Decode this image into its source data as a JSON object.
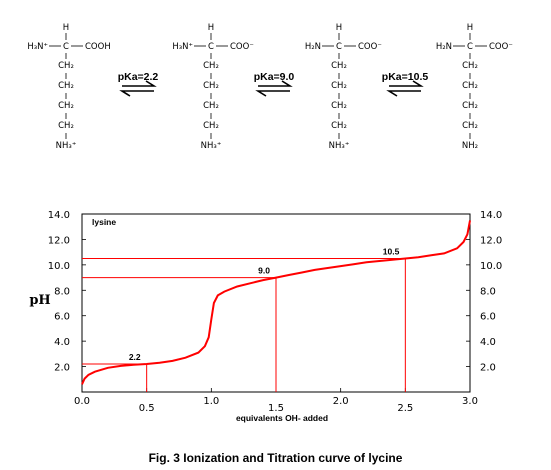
{
  "scheme": {
    "structures": [
      {
        "amine": "H₃N⁺",
        "alpha_h": "H",
        "alpha_c": "C",
        "carboxyl": "COOH",
        "chain": [
          "CH₂",
          "CH₂",
          "CH₂",
          "CH₂"
        ],
        "side_amine": "NH₃⁺"
      },
      {
        "amine": "H₃N⁺",
        "alpha_h": "H",
        "alpha_c": "C",
        "carboxyl": "COO⁻",
        "chain": [
          "CH₂",
          "CH₂",
          "CH₂",
          "CH₂"
        ],
        "side_amine": "NH₃⁺"
      },
      {
        "amine": "H₂N",
        "alpha_h": "H",
        "alpha_c": "C",
        "carboxyl": "COO⁻",
        "chain": [
          "CH₂",
          "CH₂",
          "CH₂",
          "CH₂"
        ],
        "side_amine": "NH₃⁺"
      },
      {
        "amine": "H₂N",
        "alpha_h": "H",
        "alpha_c": "C",
        "carboxyl": "COO⁻",
        "chain": [
          "CH₂",
          "CH₂",
          "CH₂",
          "CH₂"
        ],
        "side_amine": "NH₂"
      }
    ],
    "equilibria": [
      {
        "label": "pKa=2.2"
      },
      {
        "label": "pKa=9.0"
      },
      {
        "label": "pKa=10.5"
      }
    ]
  },
  "chart_data": {
    "type": "line",
    "title": "lysine",
    "xlabel": "equivalents OH- added",
    "ylabel": "pH",
    "xlim": [
      0,
      3
    ],
    "ylim": [
      0,
      14
    ],
    "x_ticks": [
      "0.0",
      "0.5",
      "1.0",
      "1.5",
      "2.0",
      "2.5",
      "3.0"
    ],
    "y_ticks": [
      "2.0",
      "4.0",
      "6.0",
      "8.0",
      "10.0",
      "12.0",
      "14.0"
    ],
    "line_color": "#ff0000",
    "annotations": [
      {
        "text": "2.2",
        "x": 0.5,
        "y": 2.2
      },
      {
        "text": "9.0",
        "x": 1.5,
        "y": 9.0
      },
      {
        "text": "10.5",
        "x": 2.5,
        "y": 10.5
      }
    ],
    "series": [
      {
        "points": [
          [
            0.0,
            0.6
          ],
          [
            0.02,
            1.05
          ],
          [
            0.05,
            1.35
          ],
          [
            0.1,
            1.6
          ],
          [
            0.2,
            1.9
          ],
          [
            0.3,
            2.05
          ],
          [
            0.4,
            2.15
          ],
          [
            0.5,
            2.2
          ],
          [
            0.6,
            2.3
          ],
          [
            0.7,
            2.45
          ],
          [
            0.8,
            2.7
          ],
          [
            0.9,
            3.1
          ],
          [
            0.95,
            3.6
          ],
          [
            0.98,
            4.3
          ],
          [
            1.0,
            5.7
          ],
          [
            1.02,
            7.0
          ],
          [
            1.05,
            7.6
          ],
          [
            1.1,
            7.9
          ],
          [
            1.2,
            8.3
          ],
          [
            1.3,
            8.55
          ],
          [
            1.4,
            8.8
          ],
          [
            1.5,
            9.0
          ],
          [
            1.6,
            9.2
          ],
          [
            1.7,
            9.4
          ],
          [
            1.8,
            9.6
          ],
          [
            1.9,
            9.75
          ],
          [
            2.0,
            9.9
          ],
          [
            2.1,
            10.05
          ],
          [
            2.2,
            10.2
          ],
          [
            2.3,
            10.3
          ],
          [
            2.4,
            10.4
          ],
          [
            2.5,
            10.5
          ],
          [
            2.6,
            10.6
          ],
          [
            2.7,
            10.75
          ],
          [
            2.8,
            10.9
          ],
          [
            2.9,
            11.3
          ],
          [
            2.95,
            11.8
          ],
          [
            2.98,
            12.4
          ],
          [
            3.0,
            13.5
          ]
        ]
      }
    ]
  },
  "caption": "Fig. 3 Ionization and Titration curve of lycine"
}
